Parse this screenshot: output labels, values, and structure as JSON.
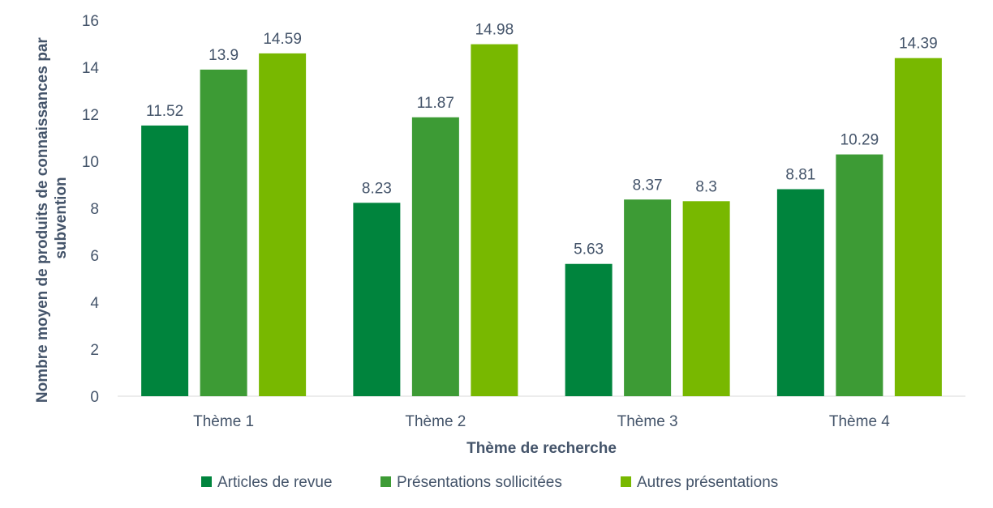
{
  "chart_data": {
    "type": "bar",
    "title": "",
    "xlabel": "Thème de recherche",
    "ylabel": "Nombre moyen de produits de connaissances par subvention",
    "ylabel_lines": [
      "Nombre moyen de produits de connaissances par",
      "subvention"
    ],
    "categories": [
      "Thème 1",
      "Thème 2",
      "Thème 3",
      "Thème 4"
    ],
    "series": [
      {
        "name": "Articles de revue",
        "color": "#00843d",
        "values": [
          11.52,
          8.23,
          5.63,
          8.81
        ]
      },
      {
        "name": "Présentations sollicitées",
        "color": "#3d9b35",
        "values": [
          13.9,
          11.87,
          8.37,
          10.29
        ]
      },
      {
        "name": "Autres présentations",
        "color": "#78b800",
        "values": [
          14.59,
          14.98,
          8.3,
          14.39
        ]
      }
    ],
    "ylim": [
      0,
      16
    ],
    "yticks": [
      0,
      2,
      4,
      6,
      8,
      10,
      12,
      14,
      16
    ],
    "grid": false,
    "legend_position": "bottom"
  }
}
